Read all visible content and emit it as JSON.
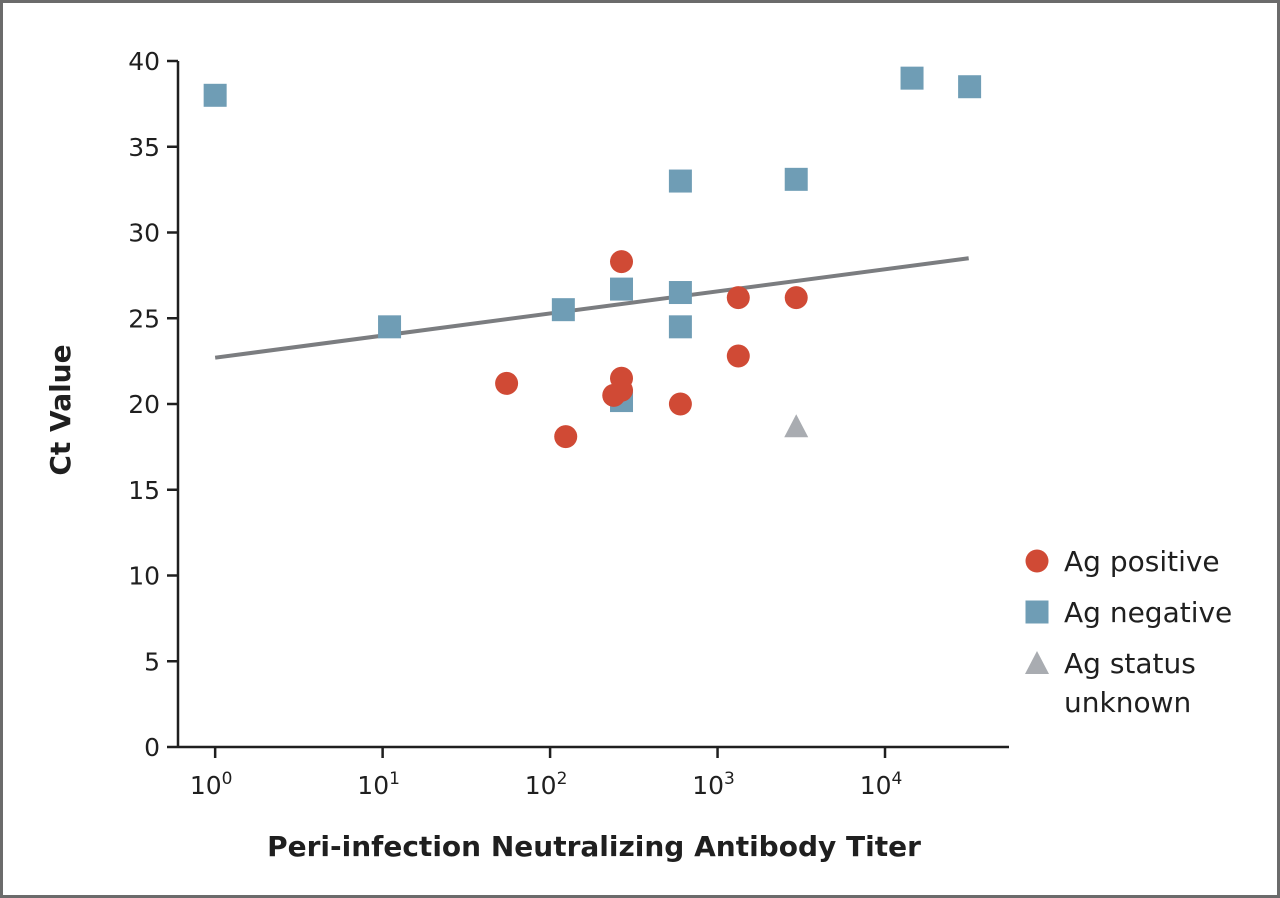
{
  "chart_data": {
    "type": "scatter",
    "title": "",
    "xlabel": "Peri-infection Neutralizing Antibody Titer",
    "ylabel": "Ct Value",
    "xscale": "log",
    "xlim": [
      0.6,
      55000
    ],
    "ylim": [
      0,
      40
    ],
    "x_ticks": [
      {
        "value": 1,
        "base": "10",
        "exp": "0"
      },
      {
        "value": 10,
        "base": "10",
        "exp": "1"
      },
      {
        "value": 100,
        "base": "10",
        "exp": "2"
      },
      {
        "value": 1000,
        "base": "10",
        "exp": "3"
      },
      {
        "value": 10000,
        "base": "10",
        "exp": "4"
      }
    ],
    "y_ticks": [
      0,
      5,
      10,
      15,
      20,
      25,
      30,
      35,
      40
    ],
    "y_tick_labels": [
      "0",
      "5",
      "10",
      "15",
      "20",
      "25",
      "30",
      "35",
      "40"
    ],
    "grid": false,
    "legend_position": "right",
    "series": [
      {
        "name": "Ag positive",
        "marker": "circle",
        "color": "#d04a35",
        "points": [
          {
            "x": 55,
            "y": 21.2
          },
          {
            "x": 124,
            "y": 18.1
          },
          {
            "x": 240,
            "y": 20.5
          },
          {
            "x": 267,
            "y": 28.3
          },
          {
            "x": 267,
            "y": 21.5
          },
          {
            "x": 267,
            "y": 20.8
          },
          {
            "x": 600,
            "y": 20.0
          },
          {
            "x": 1330,
            "y": 26.2
          },
          {
            "x": 1330,
            "y": 22.8
          },
          {
            "x": 2950,
            "y": 26.2
          }
        ]
      },
      {
        "name": "Ag negative",
        "marker": "square",
        "color": "#6f9db5",
        "points": [
          {
            "x": 1,
            "y": 38.0
          },
          {
            "x": 11,
            "y": 24.5
          },
          {
            "x": 120,
            "y": 25.5
          },
          {
            "x": 267,
            "y": 26.7
          },
          {
            "x": 267,
            "y": 20.2
          },
          {
            "x": 600,
            "y": 33.0
          },
          {
            "x": 600,
            "y": 26.5
          },
          {
            "x": 600,
            "y": 24.5
          },
          {
            "x": 2950,
            "y": 33.1
          },
          {
            "x": 14500,
            "y": 39.0
          },
          {
            "x": 32000,
            "y": 38.5
          }
        ]
      },
      {
        "name": "Ag status unknown",
        "marker": "triangle",
        "color": "#a9acb1",
        "points": [
          {
            "x": 2950,
            "y": 18.7
          }
        ]
      }
    ],
    "trendline": {
      "color": "#7b7d80",
      "points": [
        {
          "x": 1,
          "y": 22.7
        },
        {
          "x": 31600,
          "y": 28.5
        }
      ]
    },
    "legend": [
      {
        "marker": "circle",
        "color": "#d04a35",
        "lines": [
          "Ag positive"
        ]
      },
      {
        "marker": "square",
        "color": "#6f9db5",
        "lines": [
          "Ag negative"
        ]
      },
      {
        "marker": "triangle",
        "color": "#a9acb1",
        "lines": [
          "Ag status",
          "unknown"
        ]
      }
    ]
  }
}
